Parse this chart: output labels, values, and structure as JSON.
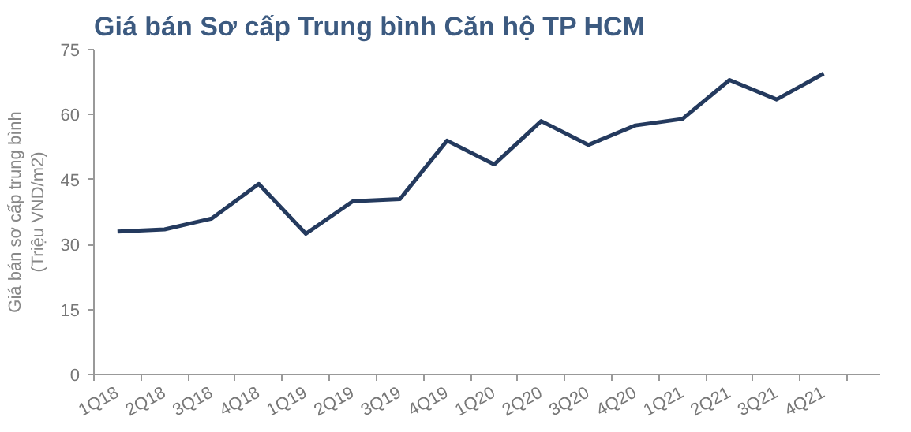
{
  "chart_data": {
    "type": "line",
    "title": "Giá bán Sơ cấp Trung bình Căn hộ TP HCM",
    "ylabel": "Giá bán sơ cấp trung bình\n(Triệu VND/m2)",
    "categories": [
      "1Q18",
      "2Q18",
      "3Q18",
      "4Q18",
      "1Q19",
      "2Q19",
      "3Q19",
      "4Q19",
      "1Q20",
      "2Q20",
      "3Q20",
      "4Q20",
      "1Q21",
      "2Q21",
      "3Q21",
      "4Q21"
    ],
    "series": [
      {
        "color": "#243a5e",
        "values": [
          33,
          33.5,
          36,
          44,
          32.5,
          40,
          40.5,
          54,
          48.5,
          58.5,
          53,
          57.5,
          59,
          68,
          63.5,
          69.5
        ]
      }
    ],
    "ylim": [
      0,
      75
    ],
    "yticks": [
      0,
      15,
      30,
      45,
      60,
      75
    ],
    "grid": false,
    "marker": "none",
    "line_style": "solid"
  }
}
